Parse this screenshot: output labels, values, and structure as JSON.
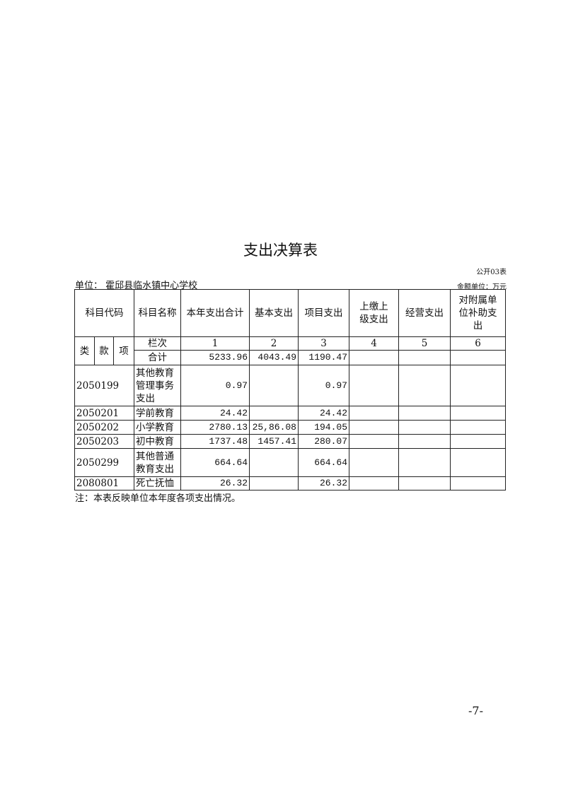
{
  "title": "支出决算表",
  "form_no": "公开03表",
  "unit": "单位： 霍邱县临水镇中心学校",
  "money_unit": "金额单位：万元",
  "headers": {
    "code": "科目代码",
    "name": "科目名称",
    "total": "本年支出合计",
    "basic": "基本支出",
    "project": "项目支出",
    "upper": "上缴上级支出",
    "business": "经营支出",
    "subsidy": "对附属单位补助支出",
    "lei": "类",
    "kuan": "款",
    "xiang": "项",
    "column_no": "栏次",
    "n1": "1",
    "n2": "2",
    "n3": "3",
    "n4": "4",
    "n5": "5",
    "n6": "6"
  },
  "sum": {
    "label": "合计",
    "total": "5233.96",
    "basic": "4043.49",
    "project": "1190.47"
  },
  "rows": [
    {
      "code": "2050199",
      "name": "其他教育管理事务支出",
      "total": "0.97",
      "basic": "",
      "project": "0.97"
    },
    {
      "code": "2050201",
      "name": "学前教育",
      "total": "24.42",
      "basic": "",
      "project": "24.42"
    },
    {
      "code": "2050202",
      "name": "小学教育",
      "total": "2780.13",
      "basic": "25,86.08",
      "project": "194.05"
    },
    {
      "code": "2050203",
      "name": "初中教育",
      "total": "1737.48",
      "basic": "1457.41",
      "project": "280.07"
    },
    {
      "code": "2050299",
      "name": "其他普通教育支出",
      "total": "664.64",
      "basic": "",
      "project": "664.64"
    },
    {
      "code": "2080801",
      "name": "死亡抚恤",
      "total": "26.32",
      "basic": "",
      "project": "26.32"
    }
  ],
  "note": "注：本表反映单位本年度各项支出情况。",
  "page_number": "-7-"
}
